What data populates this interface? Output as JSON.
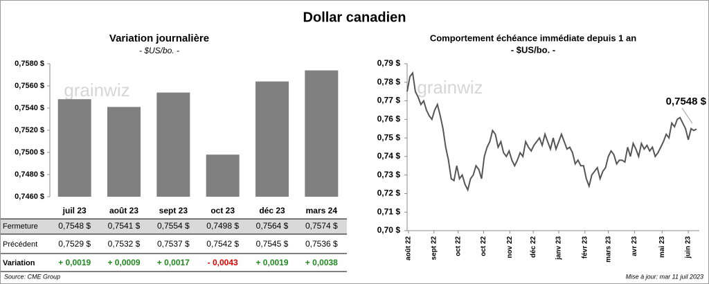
{
  "title": "Dollar canadien",
  "chart_data": [
    {
      "type": "bar",
      "title": "Variation  journalière",
      "subtitle": "- $US/bo. -",
      "watermark": "grainwiz",
      "categories": [
        "juil 23",
        "août 23",
        "sept 23",
        "oct 23",
        "déc 23",
        "mars 24"
      ],
      "values": [
        0.7548,
        0.7541,
        0.7554,
        0.7498,
        0.7564,
        0.7574
      ],
      "color": "#808080",
      "ylim": [
        0.746,
        0.758
      ],
      "yticks": [
        {
          "value": 0.746,
          "label": "0,7460 $"
        },
        {
          "value": 0.748,
          "label": "0,7480 $"
        },
        {
          "value": 0.75,
          "label": "0,7500 $"
        },
        {
          "value": 0.752,
          "label": "0,7520 $"
        },
        {
          "value": 0.754,
          "label": "0,7540 $"
        },
        {
          "value": 0.756,
          "label": "0,7560 $"
        },
        {
          "value": 0.758,
          "label": "0,7580 $"
        }
      ]
    },
    {
      "type": "line",
      "title": "Comportement échéance immédiate depuis 1 an",
      "subtitle": "- $US/bo. -",
      "watermark": "grainwiz",
      "annotation": "0,7548 $",
      "color": "#555555",
      "values": [
        0.775,
        0.783,
        0.785,
        0.775,
        0.772,
        0.768,
        0.77,
        0.765,
        0.762,
        0.76,
        0.765,
        0.768,
        0.762,
        0.755,
        0.745,
        0.738,
        0.728,
        0.727,
        0.735,
        0.728,
        0.73,
        0.725,
        0.722,
        0.728,
        0.73,
        0.735,
        0.733,
        0.728,
        0.74,
        0.745,
        0.748,
        0.754,
        0.752,
        0.745,
        0.748,
        0.742,
        0.74,
        0.743,
        0.738,
        0.735,
        0.738,
        0.742,
        0.74,
        0.748,
        0.745,
        0.743,
        0.746,
        0.748,
        0.75,
        0.746,
        0.752,
        0.748,
        0.744,
        0.75,
        0.744,
        0.748,
        0.752,
        0.748,
        0.744,
        0.745,
        0.742,
        0.736,
        0.738,
        0.735,
        0.735,
        0.728,
        0.724,
        0.73,
        0.732,
        0.734,
        0.728,
        0.732,
        0.734,
        0.74,
        0.743,
        0.741,
        0.736,
        0.738,
        0.738,
        0.737,
        0.745,
        0.74,
        0.747,
        0.744,
        0.74,
        0.747,
        0.744,
        0.746,
        0.743,
        0.745,
        0.74,
        0.742,
        0.745,
        0.748,
        0.752,
        0.75,
        0.758,
        0.756,
        0.76,
        0.761,
        0.758,
        0.755,
        0.749,
        0.755,
        0.754,
        0.7548
      ],
      "xlim": [
        0,
        106
      ],
      "xticks": [
        {
          "value": 0.5,
          "label": "août 22"
        },
        {
          "value": 9.75,
          "label": "sept 22"
        },
        {
          "value": 18.5,
          "label": "oct 22"
        },
        {
          "value": 27.75,
          "label": "oct 22"
        },
        {
          "value": 37.25,
          "label": "nov 22"
        },
        {
          "value": 45.75,
          "label": "déc 22"
        },
        {
          "value": 55,
          "label": "janv 23"
        },
        {
          "value": 64.5,
          "label": "févr 23"
        },
        {
          "value": 73,
          "label": "mars 23"
        },
        {
          "value": 82.5,
          "label": "avr 23"
        },
        {
          "value": 92.5,
          "label": "mai 23"
        },
        {
          "value": 102,
          "label": "juin 23"
        }
      ],
      "ylim": [
        0.7,
        0.79
      ],
      "yticks": [
        {
          "value": 0.7,
          "label": "0,70 $"
        },
        {
          "value": 0.71,
          "label": "0,71 $"
        },
        {
          "value": 0.72,
          "label": "0,72 $"
        },
        {
          "value": 0.73,
          "label": "0,73 $"
        },
        {
          "value": 0.74,
          "label": "0,74 $"
        },
        {
          "value": 0.75,
          "label": "0,75 $"
        },
        {
          "value": 0.76,
          "label": "0,76 $"
        },
        {
          "value": 0.77,
          "label": "0,77 $"
        },
        {
          "value": 0.78,
          "label": "0,78 $"
        },
        {
          "value": 0.79,
          "label": "0,79 $"
        }
      ]
    }
  ],
  "table": {
    "rows": [
      {
        "label": "Fermeture",
        "cells": [
          "0,7548  $",
          "0,7541  $",
          "0,7554  $",
          "0,7498  $",
          "0,7564  $",
          "0,7574  $"
        ]
      },
      {
        "label": "Précédent",
        "cells": [
          "0,7529  $",
          "0,7532  $",
          "0,7537  $",
          "0,7542  $",
          "0,7545  $",
          "0,7536  $"
        ]
      },
      {
        "label": "Variation",
        "cells": [
          "+ 0,0019",
          "+ 0,0009",
          "+ 0,0017",
          "- 0,0043",
          "+ 0,0019",
          "+ 0,0038"
        ]
      }
    ]
  },
  "source": "Source: CME Group",
  "updated": "Mise à jour: mar 11 juil 2023"
}
